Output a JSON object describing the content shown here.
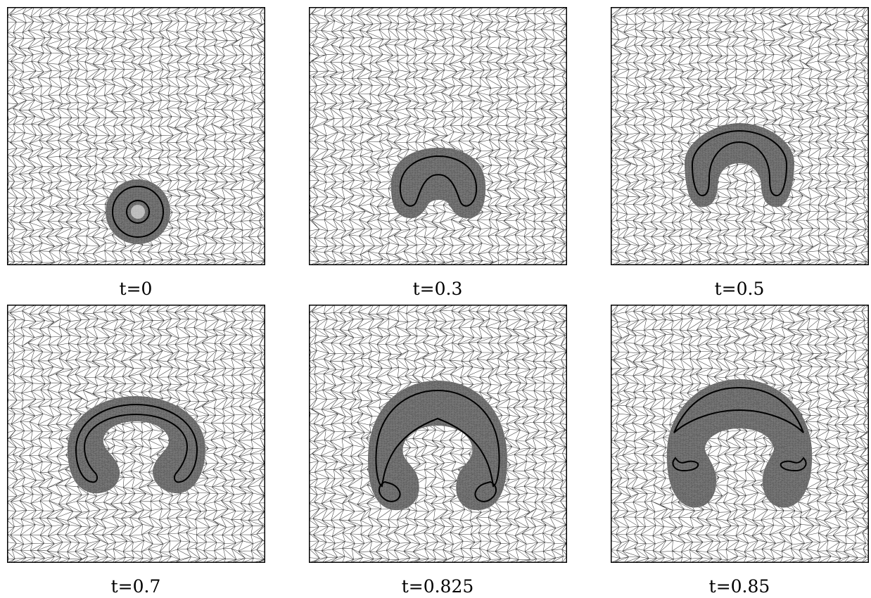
{
  "panels": [
    {
      "label": "t=0"
    },
    {
      "label": "t=0.3"
    },
    {
      "label": "t=0.5"
    },
    {
      "label": "t=0.7"
    },
    {
      "label": "t=0.825"
    },
    {
      "label": "t=0.85"
    }
  ],
  "colors": {
    "mesh_line": "#3c3c3c",
    "refined_band": "#6a6a6a",
    "interface": "#000000",
    "frame": "#000000"
  }
}
